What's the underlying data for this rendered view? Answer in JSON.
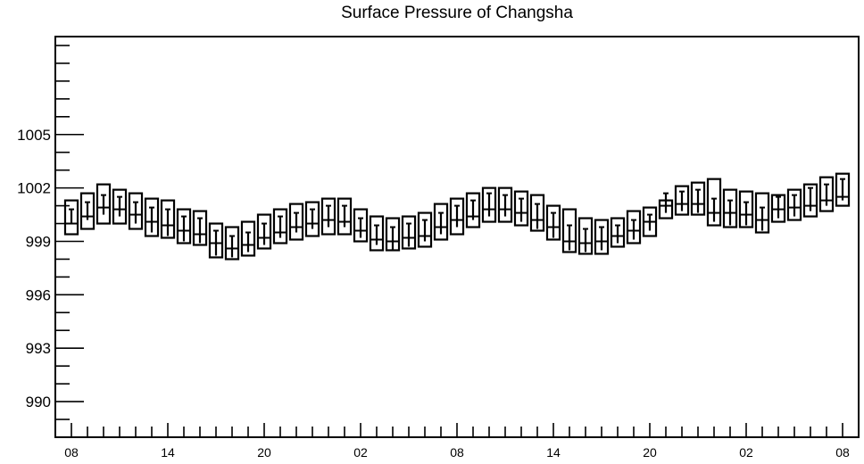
{
  "chart_data": {
    "type": "box",
    "title": "Surface Pressure of Changsha",
    "xlabel": "",
    "ylabel": "",
    "ylim": [
      988,
      1010.5
    ],
    "y_ticks": [
      990,
      993,
      996,
      999,
      1002,
      1005
    ],
    "x_tick_labels": [
      "08",
      "14",
      "20",
      "02",
      "08",
      "14",
      "20",
      "02",
      "08"
    ],
    "x_minor_tick_count": 48,
    "grid": false,
    "series": [
      {
        "hours": [
          "08",
          "09",
          "10",
          "11",
          "12",
          "13",
          "14",
          "15",
          "16",
          "17",
          "18",
          "19",
          "20",
          "21",
          "22",
          "23",
          "00",
          "01",
          "02",
          "03",
          "04",
          "05",
          "06",
          "07",
          "08",
          "09",
          "10",
          "11",
          "12",
          "13",
          "14",
          "15",
          "16",
          "17",
          "18",
          "19",
          "20",
          "21",
          "22",
          "23",
          "00",
          "01",
          "02",
          "03",
          "04",
          "05",
          "06",
          "07",
          "08"
        ],
        "box_low": [
          999.4,
          999.7,
          1000.0,
          1000.0,
          999.7,
          999.3,
          999.2,
          998.9,
          998.8,
          998.1,
          998.0,
          998.2,
          998.6,
          998.9,
          999.1,
          999.3,
          999.4,
          999.4,
          999.0,
          998.5,
          998.5,
          998.6,
          998.7,
          999.1,
          999.4,
          999.8,
          1000.1,
          1000.1,
          999.9,
          999.6,
          999.1,
          998.4,
          998.3,
          998.3,
          998.7,
          998.9,
          999.3,
          1000.3,
          1000.5,
          1000.5,
          999.9,
          999.8,
          999.8,
          999.5,
          1000.1,
          1000.2,
          1000.4,
          1000.7,
          1001.0
        ],
        "box_mid": [
          1000.0,
          1000.4,
          1000.9,
          1000.8,
          1000.5,
          1000.1,
          999.9,
          999.6,
          999.4,
          998.9,
          998.6,
          998.8,
          999.2,
          999.5,
          999.8,
          1000.0,
          1000.2,
          1000.1,
          999.6,
          999.1,
          999.0,
          999.2,
          999.3,
          999.8,
          1000.2,
          1000.4,
          1000.8,
          1000.8,
          1000.6,
          1000.2,
          999.8,
          999.0,
          998.9,
          999.0,
          999.3,
          999.6,
          1000.1,
          1001.0,
          1001.1,
          1001.1,
          1000.6,
          1000.6,
          1000.5,
          1000.2,
          1000.8,
          1000.9,
          1001.0,
          1001.3,
          1001.5
        ],
        "box_high": [
          1001.3,
          1001.7,
          1002.2,
          1001.9,
          1001.7,
          1001.4,
          1001.3,
          1000.8,
          1000.7,
          1000.0,
          999.8,
          1000.1,
          1000.5,
          1000.8,
          1001.1,
          1001.2,
          1001.4,
          1001.4,
          1000.8,
          1000.4,
          1000.3,
          1000.4,
          1000.6,
          1001.1,
          1001.4,
          1001.7,
          1002.0,
          1002.0,
          1001.8,
          1001.6,
          1001.0,
          1000.8,
          1000.3,
          1000.2,
          1000.3,
          1000.7,
          1000.9,
          1001.3,
          1002.1,
          1002.3,
          1002.5,
          1001.9,
          1001.8,
          1001.7,
          1001.6,
          1001.9,
          1002.2,
          1002.6,
          1002.8
        ],
        "whisker_low": [
          1000.0,
          1000.2,
          1000.5,
          1000.4,
          1000.0,
          999.5,
          999.3,
          999.0,
          998.9,
          998.2,
          998.1,
          998.4,
          998.8,
          999.2,
          999.5,
          999.7,
          999.8,
          999.8,
          999.2,
          998.8,
          998.5,
          998.7,
          999.0,
          999.4,
          999.8,
          1000.2,
          1000.4,
          1000.4,
          1000.1,
          999.7,
          999.2,
          998.5,
          998.4,
          998.5,
          998.9,
          999.1,
          999.6,
          1000.6,
          1000.7,
          1000.6,
          1000.1,
          999.9,
          999.9,
          999.6,
          1000.3,
          1000.4,
          1000.7,
          1001.0,
          1001.3
        ],
        "whisker_high": [
          1000.8,
          1001.2,
          1001.6,
          1001.5,
          1001.2,
          1000.9,
          1000.8,
          1000.4,
          1000.3,
          999.6,
          999.3,
          999.5,
          1000.0,
          1000.4,
          1000.6,
          1000.8,
          1001.0,
          1001.0,
          1000.3,
          999.9,
          999.8,
          1000.0,
          1000.2,
          1000.6,
          1001.0,
          1001.3,
          1001.7,
          1001.6,
          1001.4,
          1001.1,
          1000.6,
          999.9,
          999.7,
          999.8,
          999.9,
          1000.2,
          1000.5,
          1001.7,
          1001.8,
          1001.9,
          1001.4,
          1001.3,
          1001.2,
          1000.9,
          1001.5,
          1001.6,
          1002.0,
          1002.2,
          1002.5
        ]
      }
    ]
  }
}
